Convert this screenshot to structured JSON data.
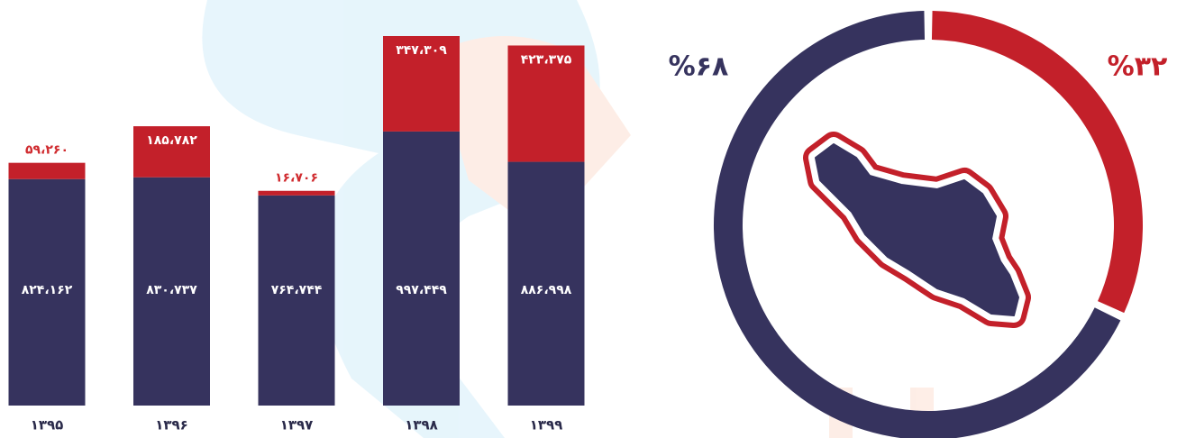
{
  "chart_data": [
    {
      "type": "bar",
      "stacked": true,
      "categories": [
        "۱۳۹۵",
        "۱۳۹۶",
        "۱۳۹۷",
        "۱۳۹۸",
        "۱۳۹۹"
      ],
      "series": [
        {
          "color": "#36335e",
          "values": [
            824162,
            830737,
            764744,
            997449,
            886998
          ],
          "value_labels": [
            "۸۲۴،۱۶۲",
            "۸۳۰،۷۳۷",
            "۷۶۴،۷۴۴",
            "۹۹۷،۴۴۹",
            "۸۸۶،۹۹۸"
          ]
        },
        {
          "color": "#c3202a",
          "values": [
            59260,
            185782,
            16706,
            347309,
            423375
          ],
          "value_labels": [
            "۵۹،۲۶۰",
            "۱۸۵،۷۸۲",
            "۱۶،۷۰۶",
            "۳۴۷،۳۰۹",
            "۴۲۳،۳۷۵"
          ]
        }
      ]
    },
    {
      "type": "donut",
      "values": [
        68,
        32
      ],
      "value_labels": [
        "%۶۸",
        "%۳۲"
      ],
      "colors": [
        "#36335e",
        "#c3202a"
      ]
    }
  ]
}
